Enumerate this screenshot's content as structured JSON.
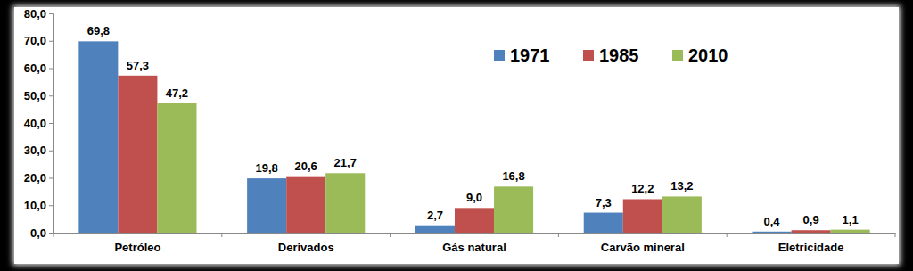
{
  "chart_data": {
    "type": "bar",
    "categories": [
      "Petróleo",
      "Derivados",
      "Gás natural",
      "Carvão mineral",
      "Eletricidade"
    ],
    "series": [
      {
        "name": "1971",
        "color": "#4f81bd",
        "values": [
          69.8,
          19.8,
          2.7,
          7.3,
          0.4
        ],
        "value_labels": [
          "69,8",
          "19,8",
          "2,7",
          "7,3",
          "0,4"
        ]
      },
      {
        "name": "1985",
        "color": "#c0504d",
        "values": [
          57.3,
          20.6,
          9.0,
          12.2,
          0.9
        ],
        "value_labels": [
          "57,3",
          "20,6",
          "9,0",
          "12,2",
          "0,9"
        ]
      },
      {
        "name": "2010",
        "color": "#9bbb59",
        "values": [
          47.2,
          21.7,
          16.8,
          13.2,
          1.1
        ],
        "value_labels": [
          "47,2",
          "21,7",
          "16,8",
          "13,2",
          "1,1"
        ]
      }
    ],
    "ylim": [
      0,
      80
    ],
    "yticks": [
      {
        "value": 0,
        "label": "0,0"
      },
      {
        "value": 10,
        "label": "10,0"
      },
      {
        "value": 20,
        "label": "20,0"
      },
      {
        "value": 30,
        "label": "30,0"
      },
      {
        "value": 40,
        "label": "40,0"
      },
      {
        "value": 50,
        "label": "50,0"
      },
      {
        "value": 60,
        "label": "60,0"
      },
      {
        "value": 70,
        "label": "70,0"
      },
      {
        "value": 80,
        "label": "80,0"
      }
    ],
    "grid": false,
    "legend": "top-right",
    "data_labels": true
  }
}
